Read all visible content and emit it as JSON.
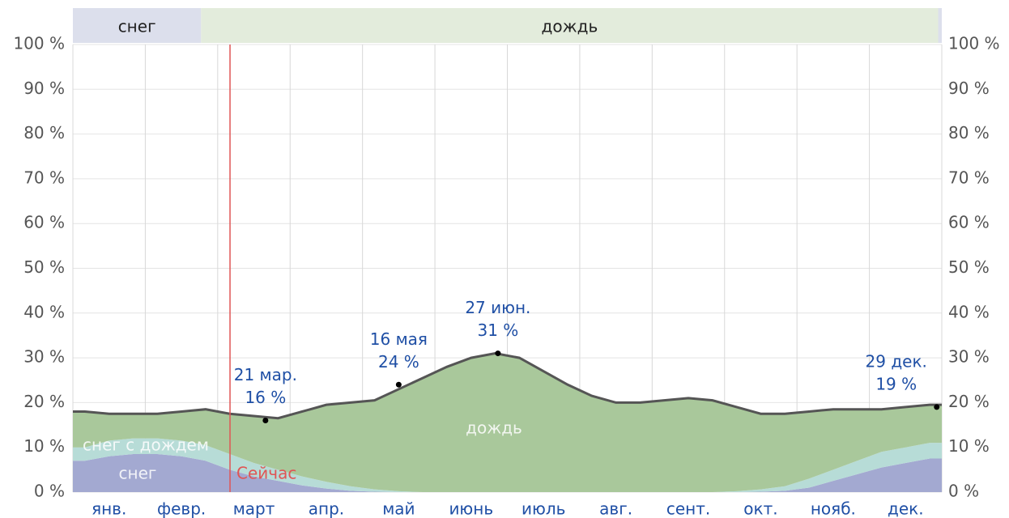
{
  "chart_data": {
    "type": "stacked-area",
    "categories": [
      null,
      "янв.",
      null,
      null,
      "февр.",
      null,
      null,
      "март",
      null,
      null,
      "апр.",
      null,
      null,
      "май",
      null,
      null,
      "июнь",
      null,
      null,
      "июль",
      null,
      null,
      "авг.",
      null,
      null,
      "сент.",
      null,
      null,
      "окт.",
      null,
      null,
      "нояб.",
      null,
      null,
      "дек.",
      null
    ],
    "series": [
      {
        "name": "снег",
        "color": "#a3a9d1",
        "values": [
          7,
          8,
          8.5,
          8.5,
          8,
          7,
          5,
          3.5,
          2.5,
          1.5,
          0.8,
          0.3,
          0.1,
          0,
          0,
          0,
          0,
          0,
          0,
          0,
          0,
          0,
          0,
          0,
          0,
          0,
          0,
          0,
          0.1,
          0.3,
          1,
          2.5,
          4,
          5.5,
          6.5,
          7.5
        ]
      },
      {
        "name": "снег с дождем",
        "color": "#b7dcd7",
        "values": [
          3,
          3.5,
          3.5,
          3.5,
          3.5,
          3.5,
          3.5,
          3,
          2.5,
          2,
          1.5,
          1,
          0.5,
          0.2,
          0,
          0,
          0,
          0,
          0,
          0,
          0,
          0,
          0,
          0,
          0,
          0,
          0,
          0.2,
          0.5,
          1,
          2,
          2.5,
          3,
          3.5,
          3.5,
          3.5
        ]
      },
      {
        "name": "дождь",
        "color": "#a9c89b",
        "values": [
          8,
          6,
          5.5,
          5.5,
          6.5,
          8,
          9,
          10.5,
          11.5,
          14.5,
          17.2,
          18.7,
          19.9,
          22.8,
          25.5,
          28,
          30,
          31,
          30,
          27,
          24,
          21.5,
          20,
          20,
          20.5,
          21,
          20.5,
          18.8,
          16.9,
          16.2,
          15,
          13.5,
          11.5,
          9.5,
          9,
          8.5
        ]
      }
    ],
    "line_color": "#555555",
    "ylim": [
      0,
      100
    ],
    "yticks": [
      {
        "value": 0,
        "label": "0 %"
      },
      {
        "value": 10,
        "label": "10 %"
      },
      {
        "value": 20,
        "label": "20 %"
      },
      {
        "value": 30,
        "label": "30 %"
      },
      {
        "value": 40,
        "label": "40 %"
      },
      {
        "value": 50,
        "label": "50 %"
      },
      {
        "value": 60,
        "label": "60 %"
      },
      {
        "value": 70,
        "label": "70 %"
      },
      {
        "value": 80,
        "label": "80 %"
      },
      {
        "value": 90,
        "label": "90 %"
      },
      {
        "value": 100,
        "label": "100 %"
      }
    ],
    "grid": true,
    "annotations": [
      {
        "date": "21 мар.",
        "value": 16,
        "value_label": "16 %"
      },
      {
        "date": "16 мая",
        "value": 24,
        "value_label": "24 %"
      },
      {
        "date": "27 июн.",
        "value": 31,
        "value_label": "31 %"
      },
      {
        "date": "29 дек.",
        "value": 19,
        "value_label": "19 %"
      }
    ],
    "now_label": "Сейчас",
    "top_band": [
      {
        "label": "снег",
        "color": "#dcdfec"
      },
      {
        "label": "дождь",
        "color": "#e3ecdc"
      }
    ]
  }
}
